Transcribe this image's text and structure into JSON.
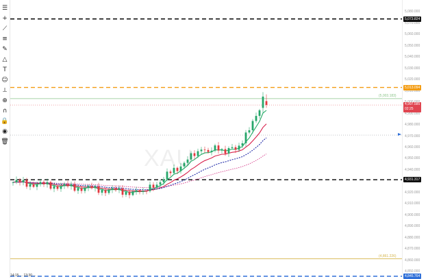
{
  "toolbar": {
    "tools": [
      {
        "id": "menu",
        "icon": "hamburger-menu-icon",
        "glyph": "☰"
      },
      {
        "id": "crosshair",
        "icon": "crosshair-icon",
        "glyph": "+"
      },
      {
        "id": "trend-line",
        "icon": "trend-line-icon",
        "glyph": "⟋"
      },
      {
        "id": "parallel",
        "icon": "parallel-lines-icon",
        "glyph": "≡"
      },
      {
        "id": "brush",
        "icon": "brush-icon",
        "glyph": "✎"
      },
      {
        "id": "shapes",
        "icon": "shapes-icon",
        "glyph": "△"
      },
      {
        "id": "text",
        "icon": "text-tool-icon",
        "glyph": "T"
      },
      {
        "id": "emoji",
        "icon": "emoji-icon",
        "glyph": "☺"
      },
      {
        "id": "ruler",
        "icon": "ruler-icon",
        "glyph": "⟂"
      },
      {
        "id": "zoom",
        "icon": "zoom-in-icon",
        "glyph": "⊕"
      },
      {
        "id": "magnet",
        "icon": "magnet-icon",
        "glyph": "∩"
      },
      {
        "id": "lock",
        "icon": "lock-icon",
        "glyph": "🔒"
      },
      {
        "id": "visibility",
        "icon": "eye-icon",
        "glyph": "◉"
      },
      {
        "id": "delete",
        "icon": "trash-icon",
        "glyph": "🗑"
      }
    ]
  },
  "chart": {
    "symbol_watermark": "XAU",
    "chart_data": {
      "type": "candlestick",
      "ylim": [
        4845.764,
        5090.0
      ],
      "horizontal_levels": [
        {
          "price": 5073.824,
          "color": "#000000",
          "style": "dashed",
          "label": "5,073.824"
        },
        {
          "price": 5013.094,
          "color": "#f39c12",
          "style": "dashed",
          "label": "5,013.094"
        },
        {
          "price": 5003.183,
          "color": "#8bc48a",
          "style": "solid",
          "label": "(5,003.183)"
        },
        {
          "price": 4970.9,
          "color": "#9aa0a6",
          "style": "dotted",
          "label": ""
        },
        {
          "price": 4931.317,
          "color": "#000000",
          "style": "dashed",
          "label": "4,931.317"
        },
        {
          "price": 4861.226,
          "color": "#d4b44a",
          "style": "solid",
          "label": "(4,861.226)"
        },
        {
          "price": 4845.764,
          "color": "#2e6fd8",
          "style": "dashed",
          "label": "4,845.764"
        }
      ],
      "current_price": {
        "price": 4997.585,
        "label": "4,997.585",
        "countdown": "02:25"
      }
    }
  },
  "price_axis": {
    "ticks": [
      "5,080.000",
      "5,070.000",
      "5,060.000",
      "5,050.000",
      "5,040.000",
      "5,030.000",
      "5,020.000",
      "5,010.000",
      "5,000.000",
      "4,990.000",
      "4,980.000",
      "4,970.000",
      "4,960.000",
      "4,950.000",
      "4,940.000",
      "4,930.000",
      "4,920.000",
      "4,910.000",
      "4,900.000",
      "4,890.000",
      "4,880.000",
      "4,870.000",
      "4,860.000",
      "4,850.000"
    ]
  },
  "bottom_info": "14:15 ... 13:30 ..."
}
